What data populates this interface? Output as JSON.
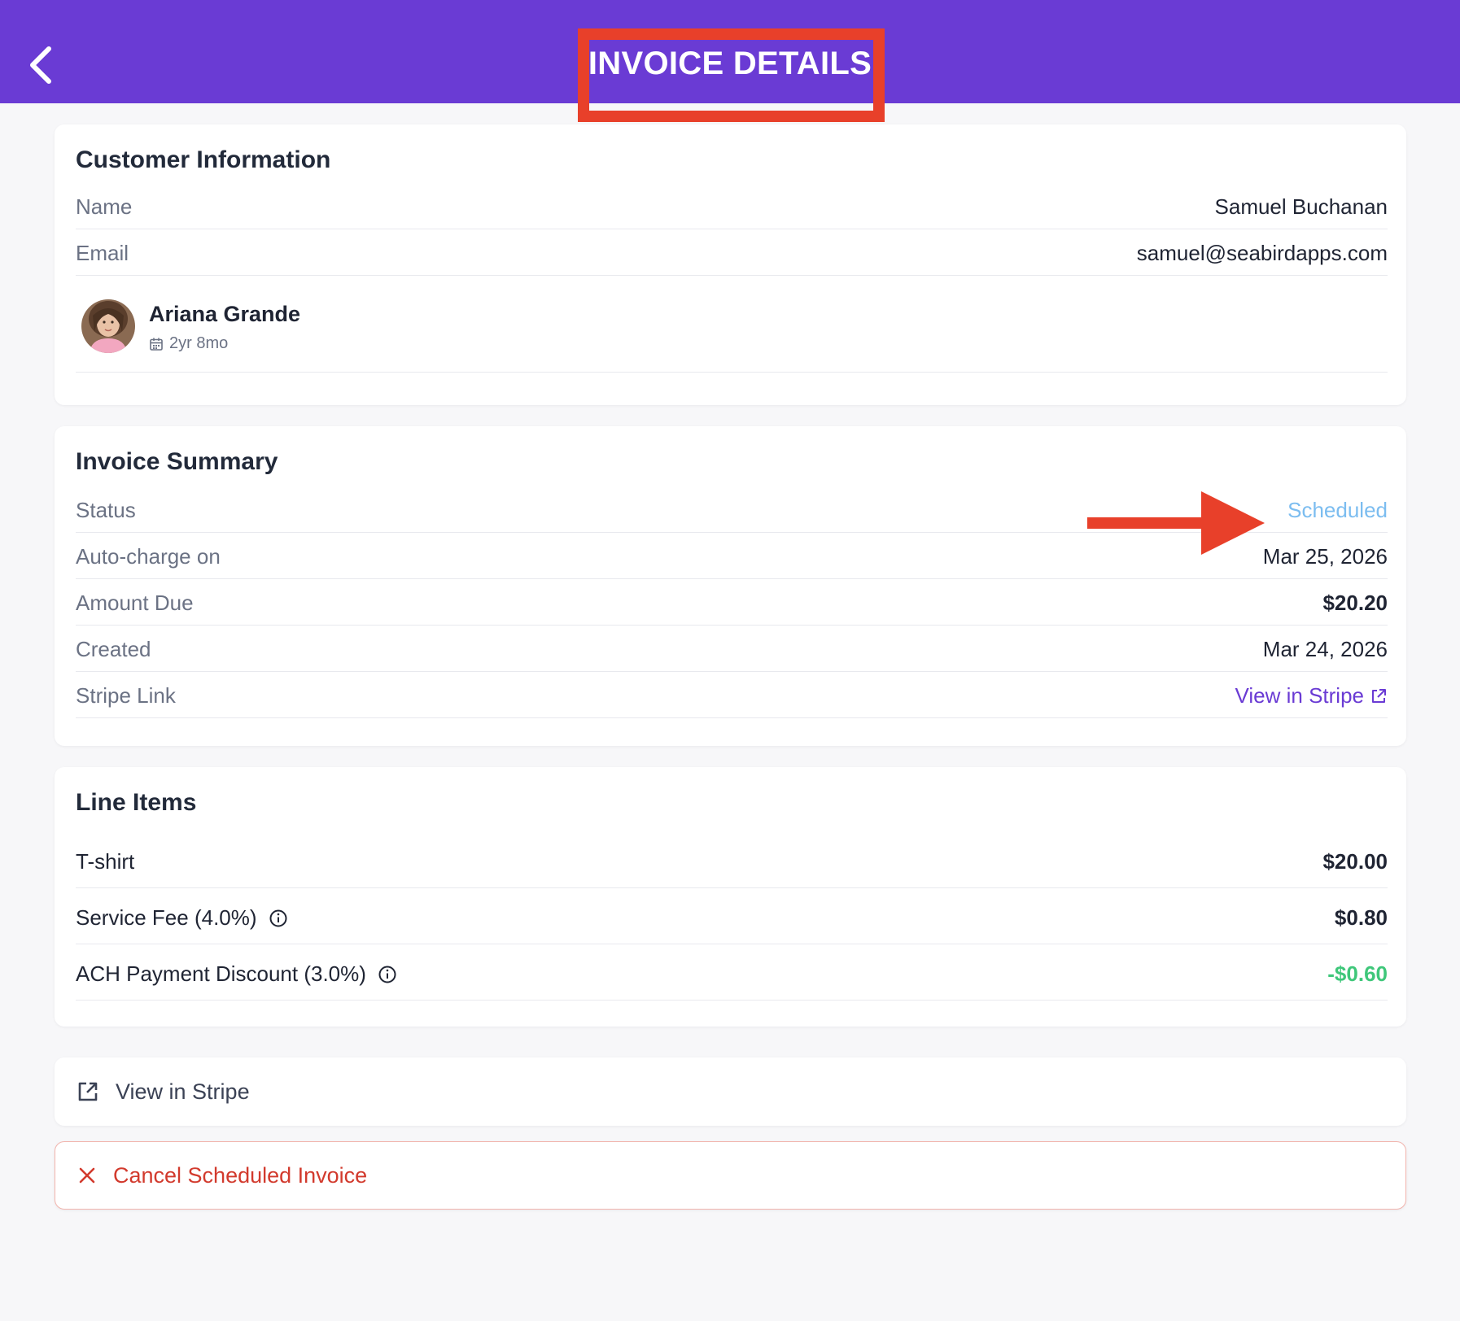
{
  "header": {
    "title": "INVOICE DETAILS",
    "background": "#6a3bd4",
    "annotation_color": "#e8402a"
  },
  "customer": {
    "section_title": "Customer Information",
    "rows": [
      {
        "label": "Name",
        "value": "Samuel Buchanan"
      },
      {
        "label": "Email",
        "value": "samuel@seabirdapps.com"
      }
    ],
    "child": {
      "name": "Ariana Grande",
      "age": "2yr 8mo"
    }
  },
  "summary": {
    "section_title": "Invoice Summary",
    "status": {
      "label": "Status",
      "value": "Scheduled",
      "color": "#7cbdf0"
    },
    "auto_charge": {
      "label": "Auto-charge on",
      "value": "Mar 25, 2026"
    },
    "amount_due": {
      "label": "Amount Due",
      "value": "$20.20"
    },
    "created": {
      "label": "Created",
      "value": "Mar 24, 2026"
    },
    "stripe": {
      "label": "Stripe Link",
      "link_text": "View in Stripe"
    }
  },
  "line_items": {
    "section_title": "Line Items",
    "items": [
      {
        "label": "T-shirt",
        "value": "$20.00"
      },
      {
        "label": "Service Fee (4.0%)",
        "value": "$0.80"
      },
      {
        "label": "ACH Payment Discount (3.0%)",
        "value": "-$0.60"
      }
    ]
  },
  "actions": {
    "view_stripe": "View in Stripe",
    "cancel": "Cancel Scheduled Invoice"
  }
}
